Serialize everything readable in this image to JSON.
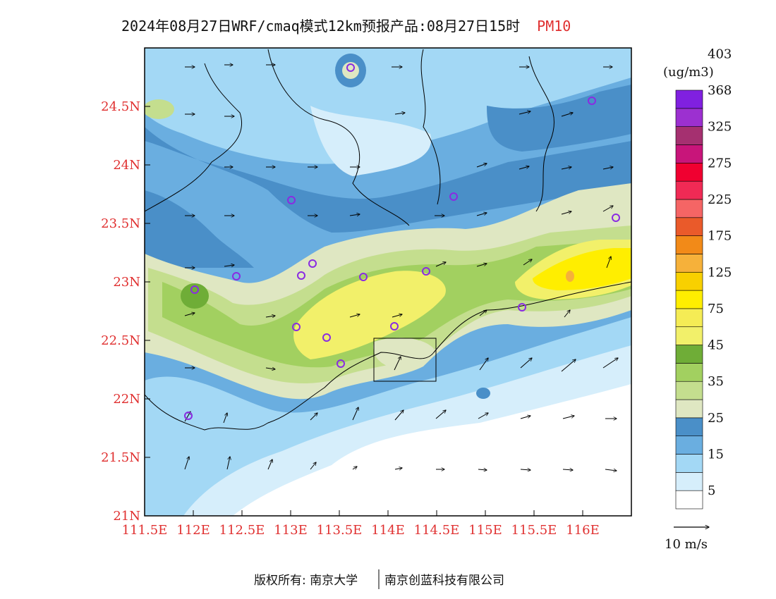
{
  "title": {
    "main": "2024年08月27日WRF/cmaq模式12km预报产品:08月27日15时",
    "variable": "PM10"
  },
  "map": {
    "lon_range": [
      111.5,
      116.5
    ],
    "lat_range": [
      21,
      25
    ],
    "x_ticks": [
      "111.5E",
      "112E",
      "112.5E",
      "113E",
      "113.5E",
      "114E",
      "114.5E",
      "115E",
      "115.5E",
      "116E"
    ],
    "y_ticks": [
      "21N",
      "21.5N",
      "22N",
      "22.5N",
      "23N",
      "23.5N",
      "24N",
      "24.5N"
    ],
    "station_color": "#8a2be2"
  },
  "colorbar": {
    "unit": "(ug/m3)",
    "labels": [
      "5",
      "15",
      "25",
      "35",
      "45",
      "75",
      "125",
      "175",
      "225",
      "275",
      "325",
      "368",
      "403"
    ],
    "colors": [
      "#ffffff",
      "#d6eefb",
      "#a3d8f5",
      "#6aaee0",
      "#4a8fc8",
      "#dfe7c2",
      "#c4de8e",
      "#a2d060",
      "#6fad37",
      "#f2f06a",
      "#f5ec55",
      "#ffee00",
      "#f8d000",
      "#f6b13a",
      "#f28a18",
      "#ea5a2a",
      "#f56565",
      "#f02a55",
      "#f00030",
      "#c8157a",
      "#a53070",
      "#9c30d0",
      "#8020e0"
    ]
  },
  "wind_legend": {
    "label": "10 m/s"
  },
  "footer": {
    "copyright": "版权所有: 南京大学",
    "company": "南京创蓝科技有限公司"
  }
}
